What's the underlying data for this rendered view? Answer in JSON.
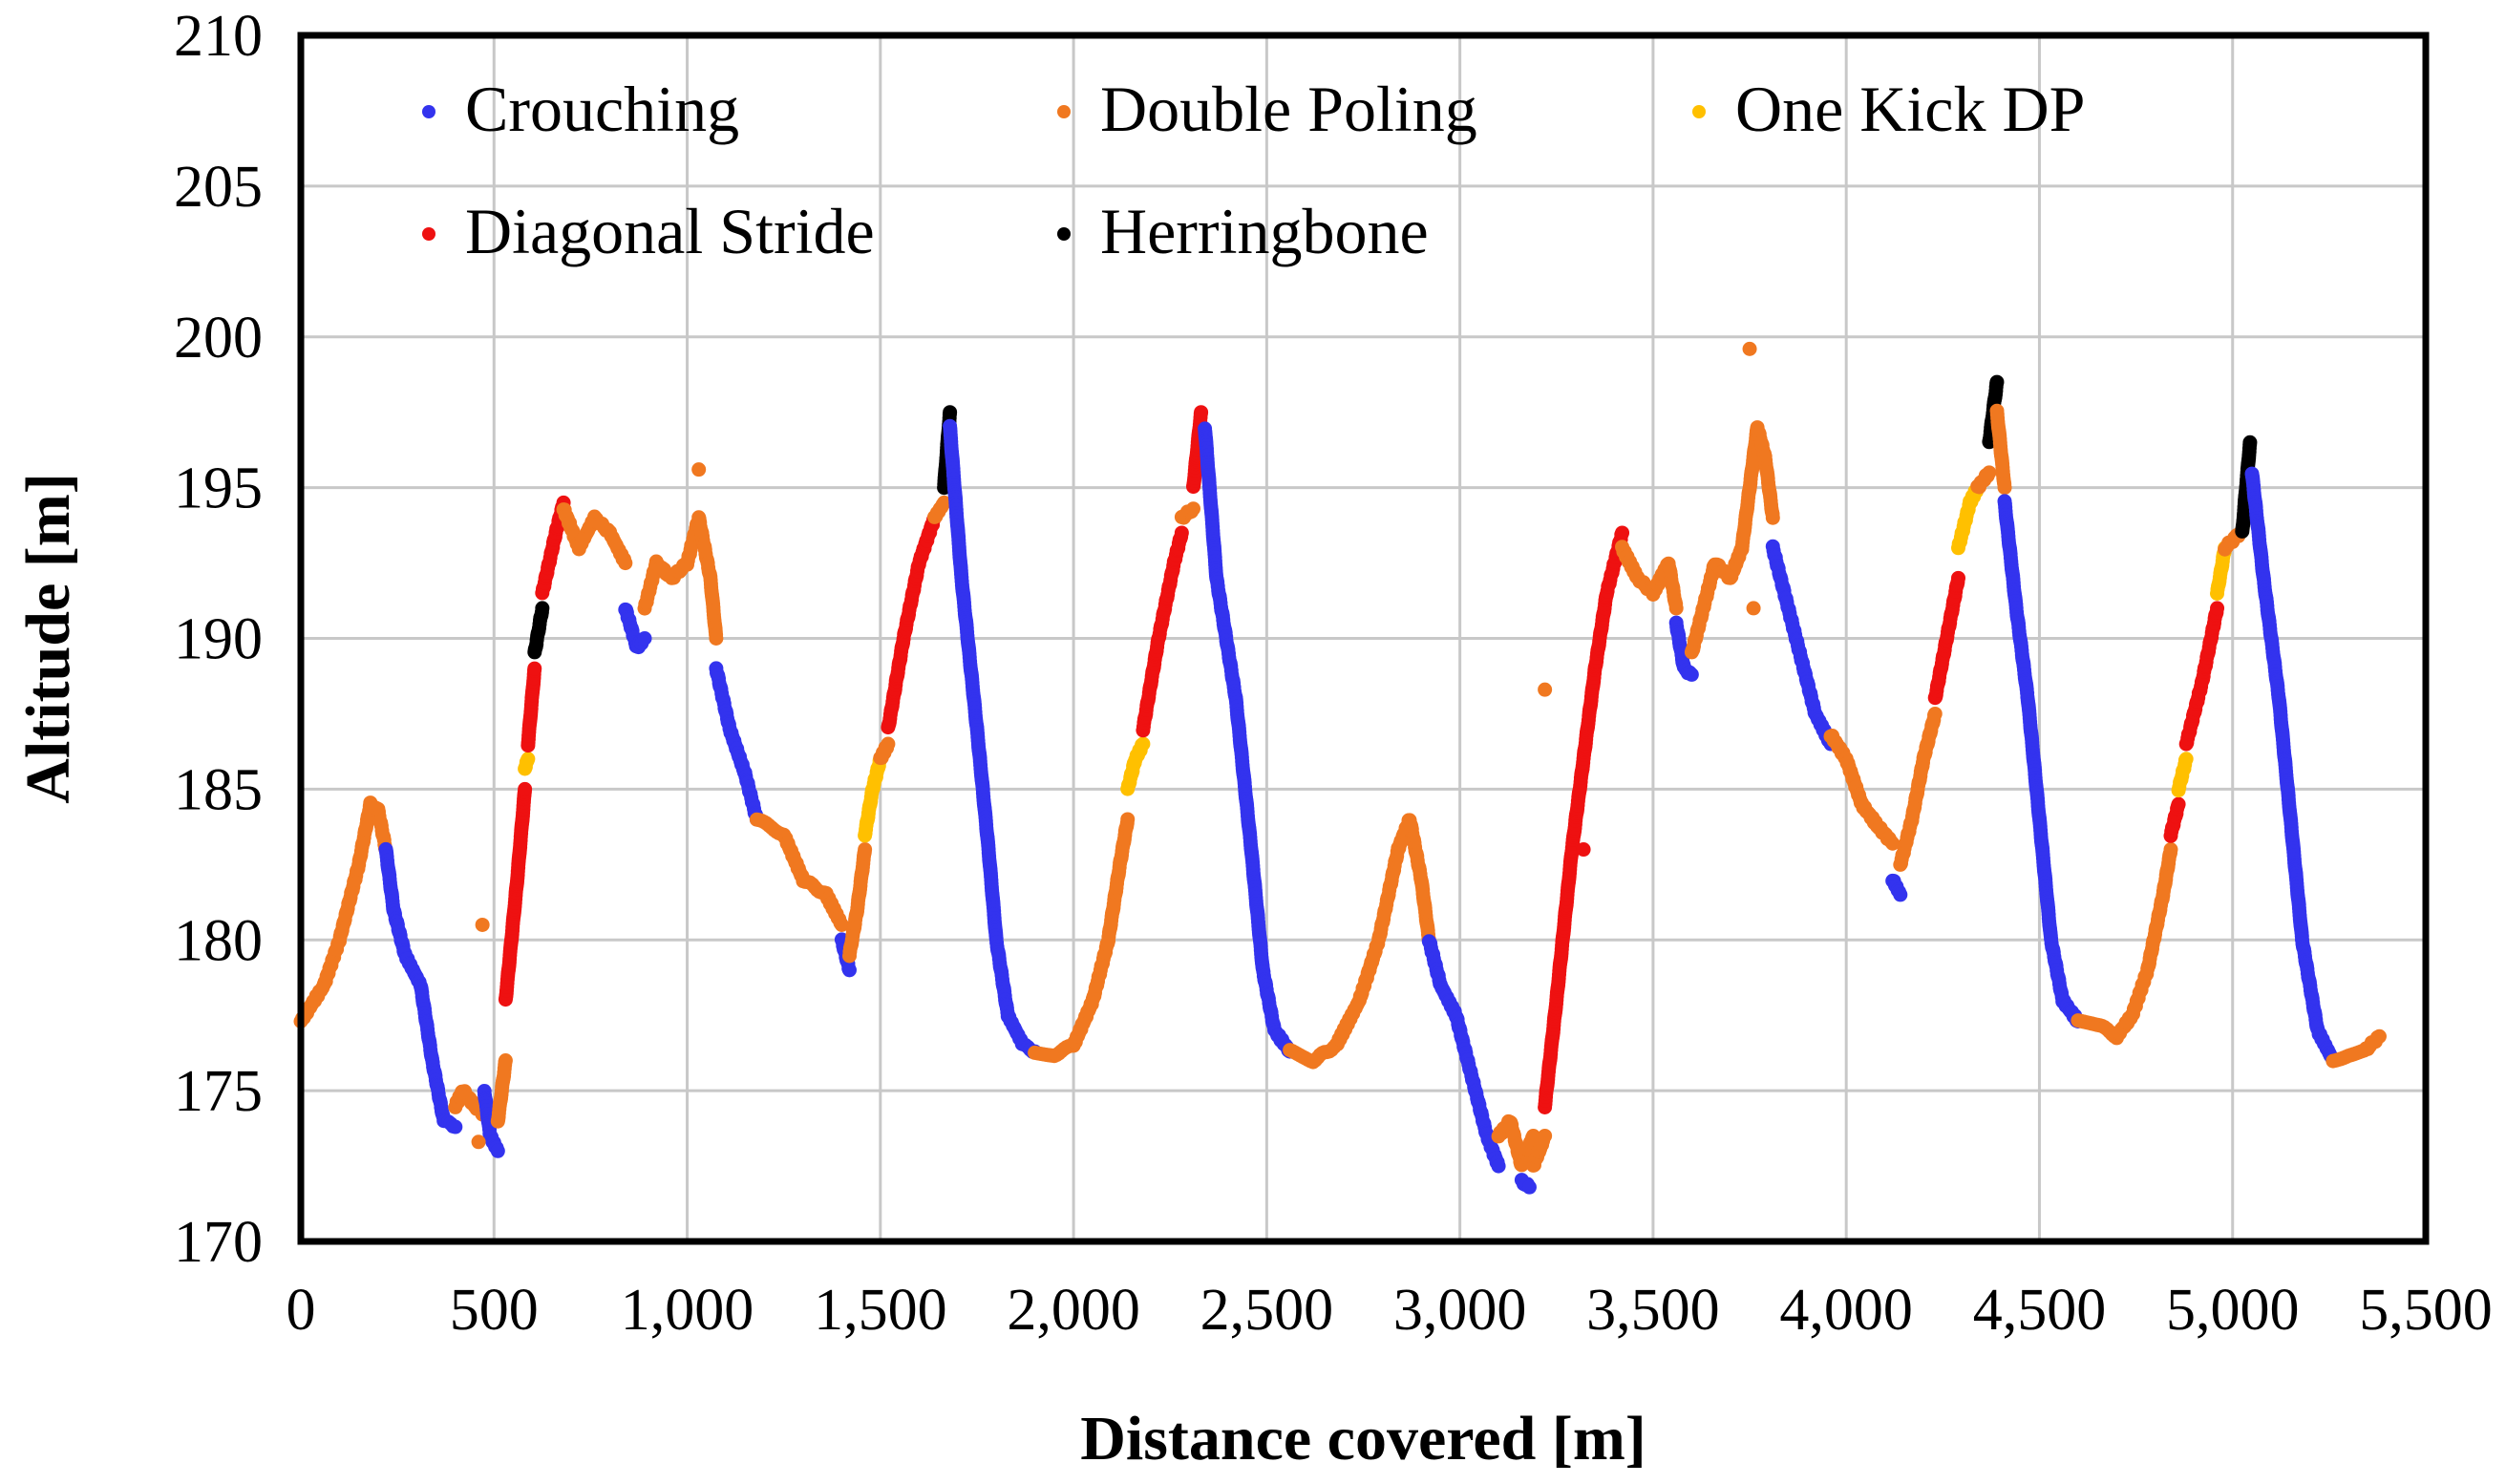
{
  "chart_data": {
    "type": "scatter",
    "title": "",
    "xlabel": "Distance covered [m]",
    "ylabel": "Altitude [m]",
    "xlim": [
      0,
      5500
    ],
    "ylim": [
      170,
      210
    ],
    "xticks": [
      "0",
      "500",
      "1,000",
      "1,500",
      "2,000",
      "2,500",
      "3,000",
      "3,500",
      "4,000",
      "4,500",
      "5,000",
      "5,500"
    ],
    "yticks": [
      "170",
      "175",
      "180",
      "185",
      "190",
      "195",
      "200",
      "205",
      "210"
    ],
    "grid": true,
    "legend_position": "top",
    "series": [
      {
        "name": "Crouching",
        "color": "#3333ee"
      },
      {
        "name": "Double Poling",
        "color": "#f07820"
      },
      {
        "name": "One Kick DP",
        "color": "#ffc000"
      },
      {
        "name": "Diagonal Stride",
        "color": "#ee1111"
      },
      {
        "name": "Herringbone",
        "color": "#000000"
      }
    ],
    "segments": [
      {
        "technique": "Double Poling",
        "points": [
          [
            0,
            177.3
          ],
          [
            60,
            178.5
          ],
          [
            100,
            180
          ],
          [
            150,
            182.5
          ],
          [
            180,
            184.5
          ],
          [
            200,
            184.3
          ],
          [
            220,
            183
          ]
        ]
      },
      {
        "technique": "Crouching",
        "points": [
          [
            220,
            183
          ],
          [
            240,
            181
          ],
          [
            270,
            179.5
          ],
          [
            310,
            178.5
          ],
          [
            340,
            176
          ],
          [
            370,
            174
          ],
          [
            400,
            173.8
          ]
        ]
      },
      {
        "technique": "Double Poling",
        "points": [
          [
            400,
            174.5
          ],
          [
            420,
            175
          ],
          [
            450,
            174.5
          ],
          [
            475,
            174.2
          ]
        ]
      },
      {
        "technique": "Crouching",
        "points": [
          [
            475,
            175
          ],
          [
            490,
            173.5
          ],
          [
            510,
            173
          ]
        ]
      },
      {
        "technique": "Double Poling",
        "points": [
          [
            510,
            174
          ],
          [
            530,
            176
          ]
        ]
      },
      {
        "technique": "Diagonal Stride",
        "points": [
          [
            530,
            178
          ],
          [
            560,
            182
          ],
          [
            580,
            185
          ]
        ]
      },
      {
        "technique": "One Kick DP",
        "points": [
          [
            580,
            185.7
          ],
          [
            588,
            186
          ]
        ]
      },
      {
        "technique": "Diagonal Stride",
        "points": [
          [
            588,
            186.5
          ],
          [
            605,
            189
          ]
        ]
      },
      {
        "technique": "Herringbone",
        "points": [
          [
            605,
            189.5
          ],
          [
            625,
            191
          ]
        ]
      },
      {
        "technique": "Diagonal Stride",
        "points": [
          [
            625,
            191.5
          ],
          [
            660,
            193.5
          ],
          [
            680,
            194.5
          ]
        ]
      },
      {
        "technique": "Double Poling",
        "points": [
          [
            680,
            194.3
          ],
          [
            720,
            193
          ],
          [
            760,
            194
          ],
          [
            800,
            193.5
          ],
          [
            840,
            192.5
          ]
        ]
      },
      {
        "technique": "Crouching",
        "points": [
          [
            840,
            191
          ],
          [
            870,
            189.7
          ],
          [
            890,
            190
          ]
        ]
      },
      {
        "technique": "Double Poling",
        "points": [
          [
            890,
            191
          ],
          [
            920,
            192.5
          ],
          [
            960,
            192
          ],
          [
            1000,
            192.5
          ],
          [
            1030,
            194
          ],
          [
            1060,
            192
          ],
          [
            1075,
            190
          ]
        ]
      },
      {
        "technique": "Crouching",
        "points": [
          [
            1075,
            189
          ],
          [
            1110,
            187
          ],
          [
            1150,
            185.5
          ],
          [
            1180,
            184
          ]
        ]
      },
      {
        "technique": "Double Poling",
        "points": [
          [
            1180,
            184
          ],
          [
            1250,
            183.5
          ],
          [
            1300,
            182
          ],
          [
            1360,
            181.5
          ],
          [
            1400,
            180.5
          ]
        ]
      },
      {
        "technique": "Crouching",
        "points": [
          [
            1400,
            180
          ],
          [
            1420,
            179
          ]
        ]
      },
      {
        "technique": "Double Poling",
        "points": [
          [
            1420,
            179.5
          ],
          [
            1440,
            181
          ],
          [
            1460,
            183
          ]
        ]
      },
      {
        "technique": "One Kick DP",
        "points": [
          [
            1460,
            183.5
          ],
          [
            1480,
            185
          ],
          [
            1500,
            186
          ]
        ]
      },
      {
        "technique": "Double Poling",
        "points": [
          [
            1500,
            186
          ],
          [
            1520,
            186.5
          ]
        ]
      },
      {
        "technique": "Diagonal Stride",
        "points": [
          [
            1520,
            187
          ],
          [
            1560,
            190
          ],
          [
            1600,
            192.5
          ],
          [
            1640,
            194
          ]
        ]
      },
      {
        "technique": "Double Poling",
        "points": [
          [
            1640,
            194
          ],
          [
            1665,
            194.5
          ]
        ]
      },
      {
        "technique": "Herringbone",
        "points": [
          [
            1665,
            195
          ],
          [
            1680,
            197.5
          ]
        ]
      },
      {
        "technique": "Crouching",
        "points": [
          [
            1680,
            197
          ],
          [
            1710,
            192
          ],
          [
            1750,
            187
          ],
          [
            1780,
            183
          ],
          [
            1800,
            180
          ],
          [
            1830,
            177.5
          ],
          [
            1870,
            176.5
          ],
          [
            1900,
            176.3
          ]
        ]
      },
      {
        "technique": "Double Poling",
        "points": [
          [
            1900,
            176.3
          ],
          [
            1950,
            176.2
          ],
          [
            2000,
            176.5
          ],
          [
            2050,
            178
          ],
          [
            2090,
            180
          ],
          [
            2120,
            182.5
          ],
          [
            2140,
            184
          ]
        ]
      },
      {
        "technique": "One Kick DP",
        "points": [
          [
            2140,
            185
          ],
          [
            2160,
            186
          ],
          [
            2180,
            186.5
          ]
        ]
      },
      {
        "technique": "Diagonal Stride",
        "points": [
          [
            2180,
            187
          ],
          [
            2220,
            190
          ],
          [
            2260,
            192.5
          ],
          [
            2280,
            193.5
          ]
        ]
      },
      {
        "technique": "Double Poling",
        "points": [
          [
            2280,
            194
          ],
          [
            2310,
            194.3
          ]
        ]
      },
      {
        "technique": "Diagonal Stride",
        "points": [
          [
            2310,
            195
          ],
          [
            2330,
            197.5
          ]
        ]
      },
      {
        "technique": "Crouching",
        "points": [
          [
            2340,
            197
          ],
          [
            2370,
            192
          ],
          [
            2420,
            188
          ],
          [
            2460,
            183
          ],
          [
            2490,
            179
          ],
          [
            2520,
            177
          ],
          [
            2560,
            176.3
          ]
        ]
      },
      {
        "technique": "Double Poling",
        "points": [
          [
            2560,
            176.3
          ],
          [
            2620,
            176
          ],
          [
            2680,
            176.5
          ],
          [
            2740,
            178
          ],
          [
            2790,
            180
          ],
          [
            2840,
            183
          ],
          [
            2870,
            184
          ],
          [
            2900,
            182
          ],
          [
            2920,
            180
          ]
        ]
      },
      {
        "technique": "Crouching",
        "points": [
          [
            2920,
            180
          ],
          [
            2950,
            178.5
          ],
          [
            2990,
            177.5
          ],
          [
            3030,
            175.5
          ],
          [
            3070,
            173.5
          ],
          [
            3100,
            172.5
          ]
        ]
      },
      {
        "technique": "Double Poling",
        "points": [
          [
            3100,
            173.5
          ],
          [
            3130,
            174
          ],
          [
            3160,
            172.5
          ],
          [
            3190,
            173.5
          ]
        ]
      },
      {
        "technique": "Crouching",
        "points": [
          [
            3160,
            172
          ],
          [
            3180,
            171.8
          ]
        ]
      },
      {
        "technique": "Double Poling",
        "points": [
          [
            3190,
            172.5
          ],
          [
            3220,
            173.5
          ]
        ]
      },
      {
        "technique": "Diagonal Stride",
        "points": [
          [
            3220,
            174.5
          ],
          [
            3250,
            178
          ],
          [
            3290,
            183
          ],
          [
            3320,
            186
          ],
          [
            3350,
            189
          ],
          [
            3380,
            191.5
          ],
          [
            3420,
            193.5
          ]
        ]
      },
      {
        "technique": "Double Poling",
        "points": [
          [
            3420,
            193
          ],
          [
            3460,
            192
          ],
          [
            3500,
            191.5
          ],
          [
            3540,
            192.5
          ],
          [
            3560,
            191
          ]
        ]
      },
      {
        "technique": "Crouching",
        "points": [
          [
            3560,
            190.5
          ],
          [
            3580,
            189
          ],
          [
            3600,
            188.8
          ]
        ]
      },
      {
        "technique": "Double Poling",
        "points": [
          [
            3600,
            189.5
          ],
          [
            3630,
            191
          ],
          [
            3660,
            192.5
          ],
          [
            3700,
            192
          ],
          [
            3730,
            193
          ],
          [
            3750,
            195
          ],
          [
            3770,
            197
          ],
          [
            3790,
            196
          ],
          [
            3810,
            194
          ]
        ]
      },
      {
        "technique": "Crouching",
        "points": [
          [
            3810,
            193
          ],
          [
            3850,
            191
          ],
          [
            3880,
            189.5
          ],
          [
            3920,
            187.5
          ],
          [
            3960,
            186.5
          ]
        ]
      },
      {
        "technique": "Double Poling",
        "points": [
          [
            3960,
            186.8
          ],
          [
            4000,
            186
          ],
          [
            4040,
            184.5
          ],
          [
            4080,
            183.8
          ],
          [
            4120,
            183.2
          ]
        ]
      },
      {
        "technique": "Crouching",
        "points": [
          [
            4120,
            182
          ],
          [
            4140,
            181.5
          ]
        ]
      },
      {
        "technique": "Double Poling",
        "points": [
          [
            4140,
            182.5
          ],
          [
            4170,
            184
          ],
          [
            4200,
            186
          ],
          [
            4230,
            187.5
          ]
        ]
      },
      {
        "technique": "Diagonal Stride",
        "points": [
          [
            4230,
            188
          ],
          [
            4260,
            190
          ],
          [
            4290,
            192
          ]
        ]
      },
      {
        "technique": "One Kick DP",
        "points": [
          [
            4290,
            193
          ],
          [
            4320,
            194.5
          ],
          [
            4340,
            195
          ]
        ]
      },
      {
        "technique": "Double Poling",
        "points": [
          [
            4340,
            195
          ],
          [
            4370,
            195.5
          ]
        ]
      },
      {
        "technique": "Herringbone",
        "points": [
          [
            4370,
            196.5
          ],
          [
            4390,
            198.5
          ]
        ]
      },
      {
        "technique": "Double Poling",
        "points": [
          [
            4390,
            197.5
          ],
          [
            4410,
            195
          ]
        ]
      },
      {
        "technique": "Crouching",
        "points": [
          [
            4410,
            194.5
          ],
          [
            4440,
            191
          ],
          [
            4470,
            188
          ],
          [
            4500,
            184
          ],
          [
            4530,
            180
          ],
          [
            4560,
            178
          ],
          [
            4600,
            177.3
          ]
        ]
      },
      {
        "technique": "Double Poling",
        "points": [
          [
            4600,
            177.3
          ],
          [
            4650,
            177.2
          ],
          [
            4700,
            176.8
          ],
          [
            4740,
            177.5
          ],
          [
            4780,
            179
          ],
          [
            4820,
            181.5
          ],
          [
            4840,
            183
          ]
        ]
      },
      {
        "technique": "Diagonal Stride",
        "points": [
          [
            4840,
            183.5
          ],
          [
            4860,
            184.5
          ]
        ]
      },
      {
        "technique": "One Kick DP",
        "points": [
          [
            4860,
            185
          ],
          [
            4880,
            186
          ]
        ]
      },
      {
        "technique": "Diagonal Stride",
        "points": [
          [
            4880,
            186.5
          ],
          [
            4920,
            188.5
          ],
          [
            4960,
            191
          ]
        ]
      },
      {
        "technique": "One Kick DP",
        "points": [
          [
            4960,
            191.5
          ],
          [
            4980,
            193
          ]
        ]
      },
      {
        "technique": "Double Poling",
        "points": [
          [
            4980,
            193
          ],
          [
            5020,
            193.5
          ]
        ]
      },
      {
        "technique": "Herringbone",
        "points": [
          [
            5025,
            193.5
          ],
          [
            5045,
            196.5
          ]
        ]
      },
      {
        "technique": "Crouching",
        "points": [
          [
            5050,
            195.5
          ],
          [
            5080,
            192
          ],
          [
            5120,
            188
          ],
          [
            5150,
            184
          ],
          [
            5180,
            180
          ],
          [
            5220,
            177
          ],
          [
            5260,
            176
          ]
        ]
      },
      {
        "technique": "Double Poling",
        "points": [
          [
            5260,
            176
          ],
          [
            5300,
            176.2
          ],
          [
            5340,
            176.3
          ],
          [
            5380,
            176.8
          ]
        ]
      }
    ],
    "outliers": [
      {
        "technique": "Double Poling",
        "x": 470,
        "y": 180.5
      },
      {
        "technique": "Double Poling",
        "x": 460,
        "y": 173.3
      },
      {
        "technique": "Double Poling",
        "x": 1030,
        "y": 195.6
      },
      {
        "technique": "Double Poling",
        "x": 3220,
        "y": 188.3
      },
      {
        "technique": "Diagonal Stride",
        "x": 3320,
        "y": 183
      },
      {
        "technique": "Double Poling",
        "x": 3750,
        "y": 199.6
      },
      {
        "technique": "Double Poling",
        "x": 3760,
        "y": 191
      }
    ]
  }
}
